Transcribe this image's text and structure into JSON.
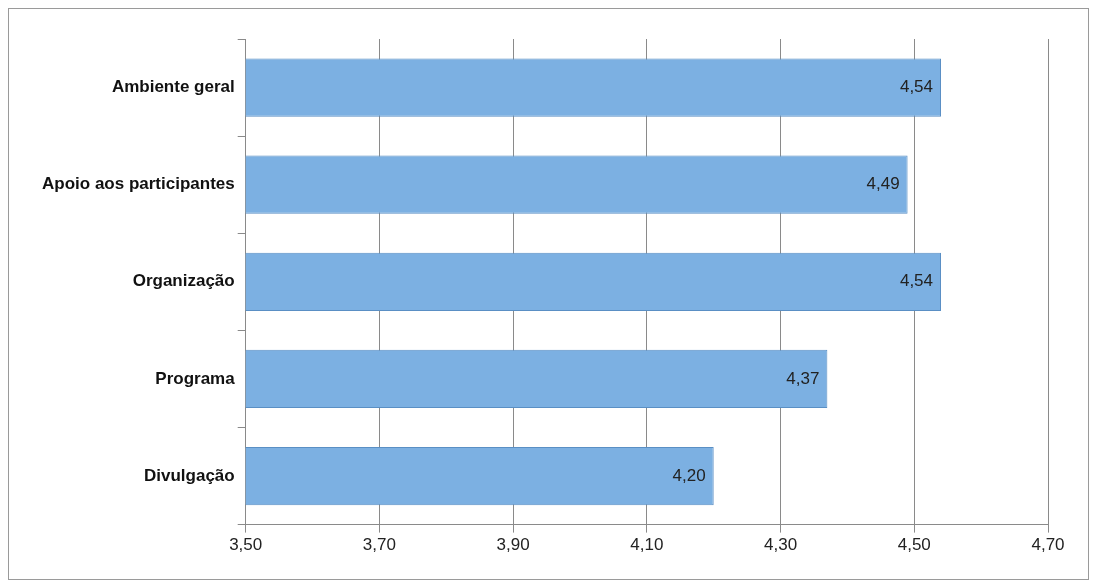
{
  "chart_data": {
    "type": "bar",
    "orientation": "horizontal",
    "categories": [
      "Ambiente geral",
      "Apoio aos participantes",
      "Organização",
      "Programa",
      "Divulgação"
    ],
    "values": [
      4.54,
      4.49,
      4.54,
      4.37,
      4.2
    ],
    "value_labels": [
      "4,54",
      "4,49",
      "4,54",
      "4,37",
      "4,20"
    ],
    "color": "#7cb0e2",
    "xlim": [
      3.5,
      4.7
    ],
    "xticks": [
      {
        "value": 3.5,
        "label": "3,50"
      },
      {
        "value": 3.7,
        "label": "3,70"
      },
      {
        "value": 3.9,
        "label": "3,90"
      },
      {
        "value": 4.1,
        "label": "4,10"
      },
      {
        "value": 4.3,
        "label": "4,30"
      },
      {
        "value": 4.5,
        "label": "4,50"
      },
      {
        "value": 4.7,
        "label": "4,70"
      }
    ],
    "grid": "x"
  }
}
